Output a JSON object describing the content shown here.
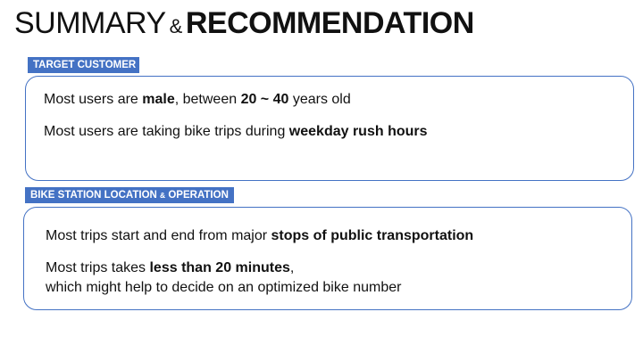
{
  "title": {
    "part1": "SUMMARY",
    "amp": "&",
    "part2": "RECOMMENDATION"
  },
  "sections": [
    {
      "label": "TARGET CUSTOMER",
      "lines": [
        {
          "t1": "Most users are ",
          "b1": "male",
          "t2": ", between ",
          "b2": "20 ~ 40",
          "t3": " years old"
        },
        {
          "t1": "Most users are taking bike trips during ",
          "b1": "weekday rush hours"
        }
      ]
    },
    {
      "label_part1": "BIKE STATION LOCATION ",
      "label_amp": "&",
      "label_part2": " OPERATION",
      "lines": [
        {
          "t1": "Most trips start and end from major ",
          "b1": "stops of public transportation"
        },
        {
          "t1": "Most trips takes ",
          "b1": "less than 20 minutes",
          "t2": ","
        },
        {
          "t1": "which might help to decide on an optimized bike number"
        }
      ]
    }
  ]
}
